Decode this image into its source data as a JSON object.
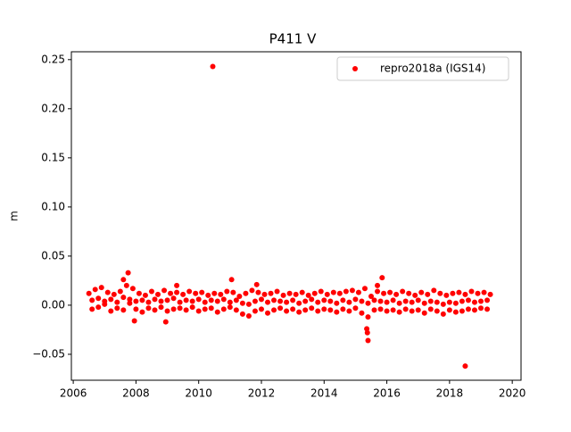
{
  "chart_data": {
    "type": "scatter",
    "title": "P411 V",
    "ylabel": "m",
    "legend": "upper right",
    "grid": false,
    "xlim": [
      2005.94,
      2020.28
    ],
    "ylim": [
      -0.0764,
      0.258
    ],
    "xticks": [
      2006,
      2008,
      2010,
      2012,
      2014,
      2016,
      2018,
      2020
    ],
    "yticks": [
      {
        "value": -0.05,
        "label": "−0.05"
      },
      {
        "value": 0,
        "label": "0.00"
      },
      0.05,
      {
        "value": 0.1,
        "label": "0.10"
      },
      0.15,
      {
        "value": 0.2,
        "label": "0.20"
      },
      0.25
    ],
    "x": [
      2006.5,
      2006.7,
      2006.9,
      2007.1,
      2007.3,
      2007.5,
      2007.7,
      2007.9,
      2008.1,
      2008.3,
      2008.5,
      2008.7,
      2008.9,
      2009.1,
      2009.3,
      2009.5,
      2009.7,
      2009.9,
      2010.1,
      2010.3,
      2010.5,
      2010.7,
      2010.9,
      2011.1,
      2011.3,
      2011.5,
      2011.7,
      2011.9,
      2012.1,
      2012.3,
      2012.5,
      2012.7,
      2012.9,
      2013.1,
      2013.3,
      2013.5,
      2013.7,
      2013.9,
      2014.1,
      2014.3,
      2014.5,
      2014.7,
      2014.9,
      2015.1,
      2015.3,
      2015.5,
      2015.7,
      2015.9,
      2016.1,
      2016.3,
      2016.5,
      2016.7,
      2016.9,
      2017.1,
      2017.3,
      2017.5,
      2017.7,
      2017.9,
      2018.1,
      2018.3,
      2018.5,
      2018.7,
      2018.9,
      2019.1,
      2019.3,
      2006.6,
      2006.8,
      2007.0,
      2007.2,
      2007.4,
      2007.6,
      2007.8,
      2008.0,
      2008.2,
      2008.4,
      2008.6,
      2008.8,
      2009.0,
      2009.2,
      2009.4,
      2009.6,
      2009.8,
      2010.0,
      2010.2,
      2010.4,
      2010.6,
      2010.8,
      2011.0,
      2011.2,
      2011.4,
      2011.6,
      2011.8,
      2012.0,
      2012.2,
      2012.4,
      2012.6,
      2012.8,
      2013.0,
      2013.2,
      2013.4,
      2013.6,
      2013.8,
      2014.0,
      2014.2,
      2014.4,
      2014.6,
      2014.8,
      2015.0,
      2015.2,
      2015.4,
      2015.6,
      2015.8,
      2016.0,
      2016.2,
      2016.4,
      2016.6,
      2016.8,
      2017.0,
      2017.2,
      2017.4,
      2017.6,
      2017.8,
      2018.0,
      2018.2,
      2018.4,
      2018.6,
      2018.8,
      2019.0,
      2019.2,
      2006.6,
      2006.8,
      2007.0,
      2007.2,
      2007.4,
      2007.6,
      2007.8,
      2008.0,
      2008.2,
      2008.4,
      2008.6,
      2008.8,
      2009.0,
      2009.2,
      2009.4,
      2009.6,
      2009.8,
      2010.0,
      2010.2,
      2010.4,
      2010.6,
      2010.8,
      2011.0,
      2011.2,
      2011.4,
      2011.6,
      2011.8,
      2012.0,
      2012.2,
      2012.4,
      2012.6,
      2012.8,
      2013.0,
      2013.2,
      2013.4,
      2013.6,
      2013.8,
      2014.0,
      2014.2,
      2014.4,
      2014.6,
      2014.8,
      2015.0,
      2015.2,
      2015.4,
      2015.6,
      2015.8,
      2016.0,
      2016.2,
      2016.4,
      2016.6,
      2016.8,
      2017.0,
      2017.2,
      2017.4,
      2017.6,
      2017.8,
      2018.0,
      2018.2,
      2018.4,
      2018.6,
      2018.8,
      2019.0,
      2019.2,
      2010.45,
      2018.5,
      2015.4,
      2015.38,
      2015.36,
      2007.75,
      2011.05,
      2015.85,
      2007.95,
      2008.95,
      2009.3,
      2011.85,
      2007.6,
      2015.7
    ],
    "series": [
      {
        "name": "repro2018a (IGS14)",
        "color": "#ff0000",
        "values": [
          0.012,
          0.016,
          0.018,
          0.013,
          0.011,
          0.014,
          0.02,
          0.017,
          0.012,
          0.01,
          0.014,
          0.011,
          0.015,
          0.012,
          0.013,
          0.011,
          0.014,
          0.012,
          0.013,
          0.01,
          0.012,
          0.011,
          0.014,
          0.013,
          0.009,
          0.012,
          0.015,
          0.013,
          0.011,
          0.012,
          0.014,
          0.01,
          0.012,
          0.011,
          0.013,
          0.01,
          0.012,
          0.014,
          0.011,
          0.013,
          0.012,
          0.014,
          0.015,
          0.013,
          0.017,
          0.009,
          0.014,
          0.012,
          0.013,
          0.011,
          0.014,
          0.012,
          0.01,
          0.013,
          0.011,
          0.015,
          0.012,
          0.01,
          0.012,
          0.013,
          0.011,
          0.014,
          0.012,
          0.013,
          0.011,
          -0.004,
          -0.002,
          0.001,
          -0.006,
          -0.003,
          -0.005,
          0.002,
          -0.004,
          -0.007,
          -0.003,
          -0.005,
          -0.002,
          -0.006,
          -0.004,
          -0.003,
          -0.005,
          -0.002,
          -0.006,
          -0.004,
          -0.003,
          -0.007,
          -0.004,
          -0.002,
          -0.005,
          -0.009,
          -0.011,
          -0.006,
          -0.004,
          -0.008,
          -0.005,
          -0.003,
          -0.006,
          -0.004,
          -0.007,
          -0.005,
          -0.003,
          -0.006,
          -0.004,
          -0.005,
          -0.007,
          -0.004,
          -0.006,
          -0.003,
          -0.008,
          -0.012,
          -0.005,
          -0.004,
          -0.006,
          -0.005,
          -0.007,
          -0.004,
          -0.006,
          -0.005,
          -0.008,
          -0.004,
          -0.006,
          -0.009,
          -0.005,
          -0.007,
          -0.006,
          -0.004,
          -0.005,
          -0.003,
          -0.004,
          0.005,
          0.007,
          0.004,
          0.006,
          0.003,
          0.008,
          0.006,
          0.004,
          0.005,
          0.003,
          0.006,
          0.004,
          0.005,
          0.007,
          0.003,
          0.005,
          0.004,
          0.006,
          0.003,
          0.005,
          0.004,
          0.006,
          0.003,
          0.005,
          0.002,
          0.001,
          0.004,
          0.006,
          0.003,
          0.005,
          0.004,
          0.003,
          0.005,
          0.002,
          0.004,
          0.006,
          0.003,
          0.005,
          0.004,
          0.002,
          0.005,
          0.003,
          0.006,
          0.004,
          0.002,
          0.005,
          0.004,
          0.003,
          0.005,
          0.002,
          0.004,
          0.003,
          0.005,
          0.002,
          0.004,
          0.003,
          0.001,
          0.003,
          0.002,
          0.004,
          0.005,
          0.003,
          0.004,
          0.005,
          0.243,
          -0.062,
          -0.036,
          -0.028,
          -0.024,
          0.033,
          0.026,
          0.028,
          -0.016,
          -0.017,
          0.02,
          0.021,
          0.026,
          0.02
        ]
      }
    ]
  }
}
